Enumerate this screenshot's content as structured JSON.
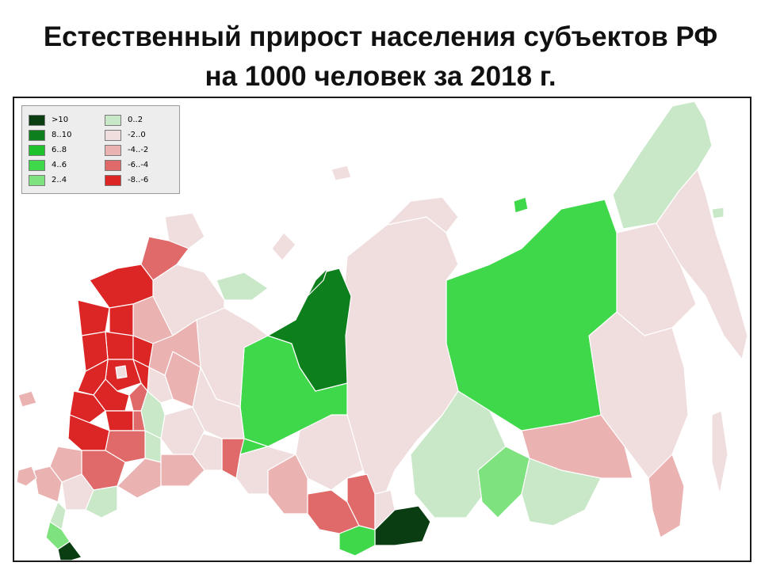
{
  "title": {
    "line1": "Естественный прирост населения субъектов РФ",
    "line2": "на 1000 человек за 2018 г."
  },
  "legend": {
    "positive": [
      {
        "label": ">10",
        "color": "#0b3d12"
      },
      {
        "label": "8..10",
        "color": "#0d7f1c"
      },
      {
        "label": "6..8",
        "color": "#1fc12c"
      },
      {
        "label": "4..6",
        "color": "#3fd84a"
      },
      {
        "label": "2..4",
        "color": "#7ee27e"
      }
    ],
    "negative": [
      {
        "label": "0..2",
        "color": "#c8e8c8"
      },
      {
        "label": "-2..0",
        "color": "#f0dede"
      },
      {
        "label": "-4..-2",
        "color": "#ebb2b2"
      },
      {
        "label": "-6..-4",
        "color": "#e06a6a"
      },
      {
        "label": "-8..-6",
        "color": "#dc2626"
      }
    ]
  },
  "colors": {
    "border": "#ffffff",
    "frame": "#1a1a1a",
    "background": "#ffffff"
  }
}
